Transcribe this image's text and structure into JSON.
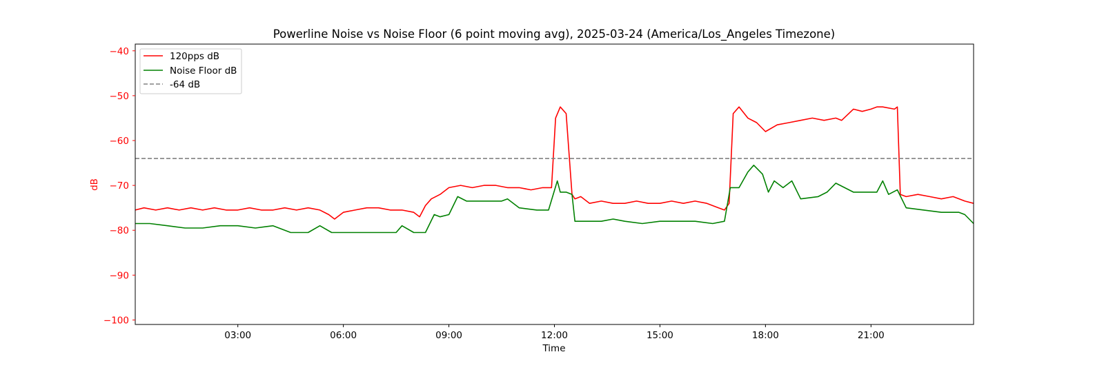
{
  "chart_data": {
    "type": "line",
    "title": "Powerline Noise vs Noise Floor (6 point moving avg), 2025-03-24 (America/Los_Angeles Timezone)",
    "xlabel": "Time",
    "ylabel": "dB",
    "x_unit": "hours",
    "xlim": [
      "00:05",
      "23:55"
    ],
    "ylim": [
      -101.0,
      -38.5
    ],
    "x_ticks": [
      "03:00",
      "06:00",
      "09:00",
      "12:00",
      "15:00",
      "18:00",
      "21:00"
    ],
    "y_ticks": [
      -40,
      -50,
      -60,
      -70,
      -80,
      -90,
      -100
    ],
    "y_tick_labels": [
      "−40",
      "−50",
      "−60",
      "−70",
      "−80",
      "−90",
      "−100"
    ],
    "ylabel_color": "#ff0000",
    "legend_position": "upper left",
    "grid": false,
    "series": [
      {
        "name": "120pps dB",
        "color": "#ff0000",
        "x": [
          "00:05",
          "00:20",
          "00:40",
          "01:00",
          "01:20",
          "01:40",
          "02:00",
          "02:20",
          "02:40",
          "03:00",
          "03:20",
          "03:40",
          "04:00",
          "04:20",
          "04:40",
          "05:00",
          "05:20",
          "05:35",
          "05:45",
          "06:00",
          "06:20",
          "06:40",
          "07:00",
          "07:20",
          "07:40",
          "08:00",
          "08:10",
          "08:20",
          "08:30",
          "08:45",
          "09:00",
          "09:20",
          "09:40",
          "10:00",
          "10:20",
          "10:40",
          "11:00",
          "11:20",
          "11:40",
          "11:55",
          "12:02",
          "12:10",
          "12:20",
          "12:30",
          "12:35",
          "12:45",
          "13:00",
          "13:20",
          "13:40",
          "14:00",
          "14:20",
          "14:40",
          "15:00",
          "15:20",
          "15:40",
          "16:00",
          "16:20",
          "16:40",
          "16:50",
          "16:58",
          "17:05",
          "17:15",
          "17:30",
          "17:45",
          "18:00",
          "18:20",
          "18:40",
          "19:00",
          "19:20",
          "19:40",
          "20:00",
          "20:10",
          "20:30",
          "20:45",
          "21:00",
          "21:10",
          "21:20",
          "21:40",
          "21:45",
          "21:50",
          "22:00",
          "22:20",
          "22:40",
          "23:00",
          "23:20",
          "23:40",
          "23:55"
        ],
        "y": [
          -75.5,
          -75.0,
          -75.5,
          -75.0,
          -75.5,
          -75.0,
          -75.5,
          -75.0,
          -75.5,
          -75.5,
          -75.0,
          -75.5,
          -75.5,
          -75.0,
          -75.5,
          -75.0,
          -75.5,
          -76.5,
          -77.5,
          -76.0,
          -75.5,
          -75.0,
          -75.0,
          -75.5,
          -75.5,
          -76.0,
          -77.0,
          -74.5,
          -73.0,
          -72.0,
          -70.5,
          -70.0,
          -70.5,
          -70.0,
          -70.0,
          -70.5,
          -70.5,
          -71.0,
          -70.5,
          -70.5,
          -55.0,
          -52.5,
          -54.0,
          -72.0,
          -73.0,
          -72.5,
          -74.0,
          -73.5,
          -74.0,
          -74.0,
          -73.5,
          -74.0,
          -74.0,
          -73.5,
          -74.0,
          -73.5,
          -74.0,
          -75.0,
          -75.5,
          -74.0,
          -54.0,
          -52.5,
          -55.0,
          -56.0,
          -58.0,
          -56.5,
          -56.0,
          -55.5,
          -55.0,
          -55.5,
          -55.0,
          -55.5,
          -53.0,
          -53.5,
          -53.0,
          -52.5,
          -52.5,
          -53.0,
          -52.5,
          -72.0,
          -72.5,
          -72.0,
          -72.5,
          -73.0,
          -72.5,
          -73.5,
          -74.0
        ]
      },
      {
        "name": "Noise Floor dB",
        "color": "#008000",
        "x": [
          "00:05",
          "00:30",
          "01:00",
          "01:30",
          "02:00",
          "02:30",
          "03:00",
          "03:30",
          "04:00",
          "04:30",
          "05:00",
          "05:20",
          "05:40",
          "06:00",
          "06:30",
          "07:00",
          "07:30",
          "07:40",
          "08:00",
          "08:20",
          "08:35",
          "08:45",
          "09:00",
          "09:15",
          "09:30",
          "10:00",
          "10:30",
          "10:40",
          "11:00",
          "11:30",
          "11:50",
          "12:05",
          "12:10",
          "12:20",
          "12:30",
          "12:35",
          "12:45",
          "13:00",
          "13:20",
          "13:40",
          "14:00",
          "14:30",
          "15:00",
          "15:30",
          "16:00",
          "16:30",
          "16:50",
          "17:00",
          "17:15",
          "17:30",
          "17:40",
          "17:55",
          "18:05",
          "18:15",
          "18:30",
          "18:45",
          "19:00",
          "19:30",
          "19:45",
          "20:00",
          "20:30",
          "21:00",
          "21:10",
          "21:20",
          "21:30",
          "21:45",
          "22:00",
          "22:30",
          "23:00",
          "23:30",
          "23:40",
          "23:55"
        ],
        "y": [
          -78.5,
          -78.5,
          -79.0,
          -79.5,
          -79.5,
          -79.0,
          -79.0,
          -79.5,
          -79.0,
          -80.5,
          -80.5,
          -79.0,
          -80.5,
          -80.5,
          -80.5,
          -80.5,
          -80.5,
          -79.0,
          -80.5,
          -80.5,
          -76.5,
          -77.0,
          -76.5,
          -72.5,
          -73.5,
          -73.5,
          -73.5,
          -73.0,
          -75.0,
          -75.5,
          -75.5,
          -69.0,
          -71.5,
          -71.5,
          -72.0,
          -78.0,
          -78.0,
          -78.0,
          -78.0,
          -77.5,
          -78.0,
          -78.5,
          -78.0,
          -78.0,
          -78.0,
          -78.5,
          -78.0,
          -70.5,
          -70.5,
          -67.0,
          -65.5,
          -67.5,
          -71.5,
          -69.0,
          -70.5,
          -69.0,
          -73.0,
          -72.5,
          -71.5,
          -69.5,
          -71.5,
          -71.5,
          -71.5,
          -69.0,
          -72.0,
          -71.0,
          -75.0,
          -75.5,
          -76.0,
          -76.0,
          -76.5,
          -78.5
        ]
      },
      {
        "name": "-64 dB",
        "color": "#808080",
        "style": "dashed",
        "constant": -64
      }
    ]
  }
}
